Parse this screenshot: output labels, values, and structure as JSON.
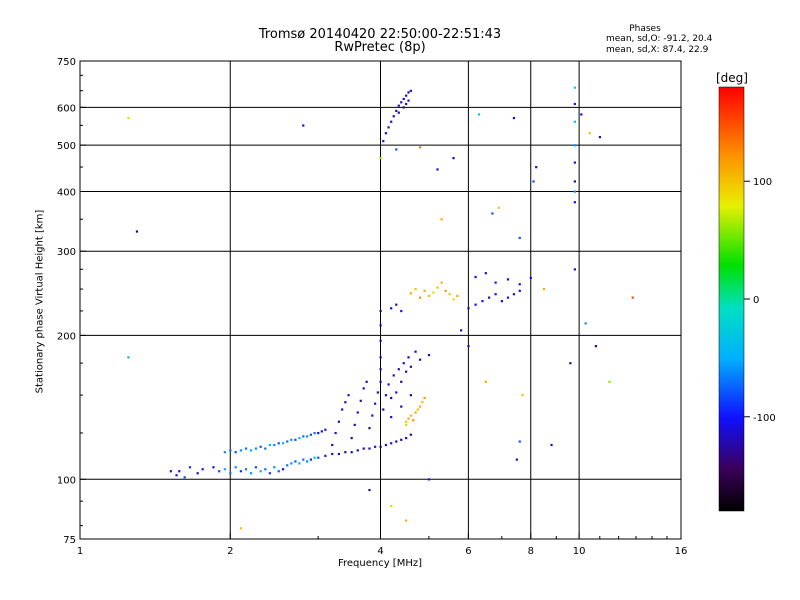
{
  "header": {
    "title_line1": "Tromsø 20140420 22:50:00-22:51:43",
    "title_line2": "RwPretec (8p)"
  },
  "phases": {
    "title": "Phases",
    "o_text": "mean, sd,O:  -91.2, 20.4",
    "x_text": "mean, sd,X:  87.4, 22.9"
  },
  "colorbar": {
    "label": "[deg]",
    "ticks": [
      "100",
      "0",
      "-100"
    ],
    "tick_values": [
      100,
      0,
      -100
    ],
    "range": [
      -180,
      180
    ]
  },
  "chart_data": {
    "type": "scatter",
    "title": "Tromsø 20140420 22:50:00-22:51:43",
    "subtitle": "RwPretec (8p)",
    "xlabel": "Frequency [MHz]",
    "ylabel": "Stationary phase Virtual Height [km]",
    "xscale": "log",
    "yscale": "log",
    "xlim": [
      1,
      16
    ],
    "ylim": [
      75,
      750
    ],
    "x_ticks": [
      1,
      2,
      4,
      6,
      8,
      10,
      16
    ],
    "x_tick_labels": [
      "1",
      "2",
      "4",
      "6",
      "8",
      "10",
      "16"
    ],
    "y_ticks": [
      75,
      100,
      200,
      300,
      400,
      500,
      600,
      750
    ],
    "y_tick_labels": [
      "75",
      "100",
      "200",
      "300",
      "400",
      "500",
      "600",
      "750"
    ],
    "grid_x": [
      2,
      4,
      6,
      8,
      10
    ],
    "grid_y": [
      100,
      200,
      300,
      400,
      500,
      600
    ],
    "color_by": "phase_deg",
    "points": [
      [
        1.52,
        104,
        -110
      ],
      [
        1.56,
        102,
        -100
      ],
      [
        1.58,
        104,
        -110
      ],
      [
        1.62,
        101,
        -80
      ],
      [
        1.66,
        106,
        -90
      ],
      [
        1.72,
        103,
        -120
      ],
      [
        1.76,
        105,
        -100
      ],
      [
        1.85,
        106,
        -110
      ],
      [
        1.9,
        104,
        -80
      ],
      [
        1.95,
        105,
        -50
      ],
      [
        2.0,
        103,
        -70
      ],
      [
        2.05,
        106,
        -60
      ],
      [
        2.1,
        104,
        -90
      ],
      [
        2.15,
        105,
        -70
      ],
      [
        2.2,
        103,
        -60
      ],
      [
        2.25,
        106,
        -80
      ],
      [
        2.3,
        104,
        -50
      ],
      [
        2.35,
        105,
        -70
      ],
      [
        2.4,
        103,
        -90
      ],
      [
        2.45,
        106,
        -60
      ],
      [
        2.5,
        104,
        -80
      ],
      [
        2.55,
        105,
        -100
      ],
      [
        2.6,
        107,
        -70
      ],
      [
        2.65,
        108,
        -60
      ],
      [
        2.7,
        109,
        -80
      ],
      [
        2.75,
        108,
        -50
      ],
      [
        2.8,
        110,
        -70
      ],
      [
        2.85,
        109,
        -60
      ],
      [
        2.9,
        110,
        -90
      ],
      [
        2.95,
        111,
        -40
      ],
      [
        3.0,
        111,
        -80
      ],
      [
        3.1,
        112,
        -100
      ],
      [
        3.2,
        113,
        -120
      ],
      [
        3.3,
        113,
        -110
      ],
      [
        3.4,
        114,
        -130
      ],
      [
        3.5,
        114,
        -120
      ],
      [
        3.6,
        115,
        -110
      ],
      [
        3.7,
        116,
        -130
      ],
      [
        3.8,
        116,
        -120
      ],
      [
        3.9,
        117,
        -110
      ],
      [
        4.0,
        117,
        -130
      ],
      [
        4.1,
        118,
        -120
      ],
      [
        4.2,
        119,
        -110
      ],
      [
        4.3,
        120,
        -120
      ],
      [
        4.4,
        121,
        -130
      ],
      [
        4.5,
        122,
        -110
      ],
      [
        4.6,
        124,
        -120
      ],
      [
        1.95,
        114,
        -60
      ],
      [
        2.0,
        115,
        -70
      ],
      [
        2.05,
        114,
        -80
      ],
      [
        2.1,
        115,
        -60
      ],
      [
        2.15,
        116,
        -70
      ],
      [
        2.2,
        115,
        -50
      ],
      [
        2.25,
        116,
        -60
      ],
      [
        2.3,
        117,
        -80
      ],
      [
        2.35,
        116,
        -70
      ],
      [
        2.4,
        118,
        -50
      ],
      [
        2.45,
        118,
        -60
      ],
      [
        2.5,
        119,
        -80
      ],
      [
        2.55,
        119,
        -50
      ],
      [
        2.6,
        120,
        -70
      ],
      [
        2.65,
        121,
        -60
      ],
      [
        2.7,
        121,
        -80
      ],
      [
        2.75,
        122,
        -50
      ],
      [
        2.8,
        123,
        -70
      ],
      [
        2.85,
        123,
        -60
      ],
      [
        2.9,
        124,
        -80
      ],
      [
        2.95,
        125,
        -70
      ],
      [
        3.0,
        125,
        -100
      ],
      [
        3.05,
        126,
        -110
      ],
      [
        3.1,
        127,
        -100
      ],
      [
        3.2,
        118,
        -120
      ],
      [
        3.25,
        125,
        -110
      ],
      [
        3.3,
        132,
        -120
      ],
      [
        3.35,
        140,
        -110
      ],
      [
        3.4,
        145,
        -120
      ],
      [
        3.45,
        150,
        -110
      ],
      [
        3.5,
        122,
        -130
      ],
      [
        3.55,
        130,
        -120
      ],
      [
        3.6,
        138,
        -110
      ],
      [
        3.65,
        146,
        -120
      ],
      [
        3.7,
        155,
        -110
      ],
      [
        3.75,
        160,
        -120
      ],
      [
        3.8,
        128,
        -130
      ],
      [
        3.85,
        136,
        -120
      ],
      [
        3.9,
        144,
        -110
      ],
      [
        3.95,
        152,
        -120
      ],
      [
        4.0,
        160,
        -110
      ],
      [
        4.0,
        170,
        -120
      ],
      [
        4.0,
        180,
        -115
      ],
      [
        4.0,
        195,
        -120
      ],
      [
        4.0,
        210,
        -110
      ],
      [
        4.0,
        225,
        -120
      ],
      [
        4.05,
        140,
        -130
      ],
      [
        4.1,
        150,
        -120
      ],
      [
        4.15,
        158,
        -110
      ],
      [
        4.2,
        148,
        -130
      ],
      [
        4.25,
        165,
        -120
      ],
      [
        4.3,
        152,
        -110
      ],
      [
        4.35,
        170,
        -120
      ],
      [
        4.4,
        160,
        -130
      ],
      [
        4.45,
        175,
        -110
      ],
      [
        4.5,
        168,
        -120
      ],
      [
        4.55,
        180,
        -115
      ],
      [
        4.6,
        172,
        -110
      ],
      [
        4.7,
        185,
        -120
      ],
      [
        4.8,
        178,
        -130
      ],
      [
        5.0,
        182,
        -120
      ],
      [
        4.6,
        150,
        -125
      ],
      [
        4.4,
        142,
        -120
      ],
      [
        4.2,
        135,
        -110
      ],
      [
        4.5,
        132,
        100
      ],
      [
        4.55,
        134,
        110
      ],
      [
        4.6,
        136,
        100
      ],
      [
        4.65,
        133,
        120
      ],
      [
        4.7,
        138,
        110
      ],
      [
        4.75,
        140,
        100
      ],
      [
        4.8,
        142,
        110
      ],
      [
        4.5,
        130,
        90
      ],
      [
        4.85,
        145,
        100
      ],
      [
        4.9,
        148,
        120
      ],
      [
        4.6,
        245,
        110
      ],
      [
        4.7,
        250,
        100
      ],
      [
        4.8,
        240,
        120
      ],
      [
        4.9,
        248,
        110
      ],
      [
        5.0,
        242,
        100
      ],
      [
        5.1,
        246,
        90
      ],
      [
        5.2,
        252,
        100
      ],
      [
        5.3,
        258,
        110
      ],
      [
        5.4,
        248,
        120
      ],
      [
        5.5,
        244,
        100
      ],
      [
        5.6,
        238,
        90
      ],
      [
        5.7,
        242,
        110
      ],
      [
        4.2,
        228,
        -110
      ],
      [
        4.3,
        232,
        -120
      ],
      [
        4.4,
        225,
        -100
      ],
      [
        6.0,
        228,
        -120
      ],
      [
        6.2,
        232,
        -110
      ],
      [
        6.4,
        236,
        -100
      ],
      [
        6.6,
        240,
        -120
      ],
      [
        6.8,
        244,
        -110
      ],
      [
        7.0,
        236,
        -120
      ],
      [
        7.2,
        240,
        -100
      ],
      [
        7.4,
        244,
        -110
      ],
      [
        7.6,
        248,
        -120
      ],
      [
        6.2,
        265,
        -120
      ],
      [
        6.5,
        270,
        -110
      ],
      [
        6.8,
        258,
        -100
      ],
      [
        7.2,
        262,
        -120
      ],
      [
        7.6,
        256,
        -110
      ],
      [
        8.0,
        264,
        -100
      ],
      [
        9.8,
        275,
        -120
      ],
      [
        8.5,
        250,
        110
      ],
      [
        4.05,
        510,
        -120
      ],
      [
        4.1,
        530,
        -110
      ],
      [
        4.15,
        545,
        -120
      ],
      [
        4.2,
        560,
        -110
      ],
      [
        4.25,
        575,
        -120
      ],
      [
        4.3,
        590,
        -115
      ],
      [
        4.35,
        605,
        -120
      ],
      [
        4.4,
        615,
        -110
      ],
      [
        4.45,
        625,
        -120
      ],
      [
        4.5,
        635,
        -115
      ],
      [
        4.55,
        645,
        -120
      ],
      [
        4.6,
        650,
        -110
      ],
      [
        4.45,
        600,
        -130
      ],
      [
        4.5,
        610,
        -120
      ],
      [
        4.55,
        620,
        -110
      ],
      [
        4.35,
        585,
        -120
      ],
      [
        9.8,
        660,
        -20
      ],
      [
        9.8,
        610,
        -110
      ],
      [
        9.8,
        560,
        -40
      ],
      [
        9.8,
        500,
        -60
      ],
      [
        9.8,
        460,
        -110
      ],
      [
        9.8,
        420,
        -120
      ],
      [
        9.8,
        400,
        -60
      ],
      [
        9.8,
        380,
        -110
      ],
      [
        10.1,
        580,
        -110
      ],
      [
        10.5,
        530,
        100
      ],
      [
        11.0,
        520,
        -130
      ],
      [
        1.25,
        570,
        90
      ],
      [
        1.3,
        330,
        -140
      ],
      [
        1.25,
        180,
        -50
      ],
      [
        2.8,
        550,
        -110
      ],
      [
        4.0,
        470,
        60
      ],
      [
        4.3,
        490,
        -80
      ],
      [
        4.8,
        495,
        130
      ],
      [
        5.2,
        445,
        -110
      ],
      [
        5.6,
        470,
        -120
      ],
      [
        6.3,
        580,
        -30
      ],
      [
        6.7,
        360,
        -80
      ],
      [
        6.9,
        370,
        100
      ],
      [
        7.4,
        570,
        -120
      ],
      [
        7.6,
        320,
        -80
      ],
      [
        8.1,
        420,
        -80
      ],
      [
        8.2,
        450,
        -120
      ],
      [
        5.3,
        350,
        110
      ],
      [
        3.8,
        95,
        -130
      ],
      [
        4.2,
        88,
        90
      ],
      [
        4.5,
        82,
        110
      ],
      [
        2.1,
        79,
        100
      ],
      [
        7.5,
        110,
        -110
      ],
      [
        7.6,
        120,
        -80
      ],
      [
        7.7,
        150,
        100
      ],
      [
        8.8,
        118,
        -120
      ],
      [
        10.3,
        212,
        -60
      ],
      [
        10.8,
        190,
        -140
      ],
      [
        12.8,
        240,
        150
      ],
      [
        11.5,
        160,
        60
      ],
      [
        5.0,
        100,
        -100
      ],
      [
        9.6,
        175,
        -130
      ],
      [
        6.5,
        160,
        110
      ],
      [
        6.0,
        190,
        -110
      ],
      [
        5.8,
        205,
        -120
      ]
    ]
  }
}
